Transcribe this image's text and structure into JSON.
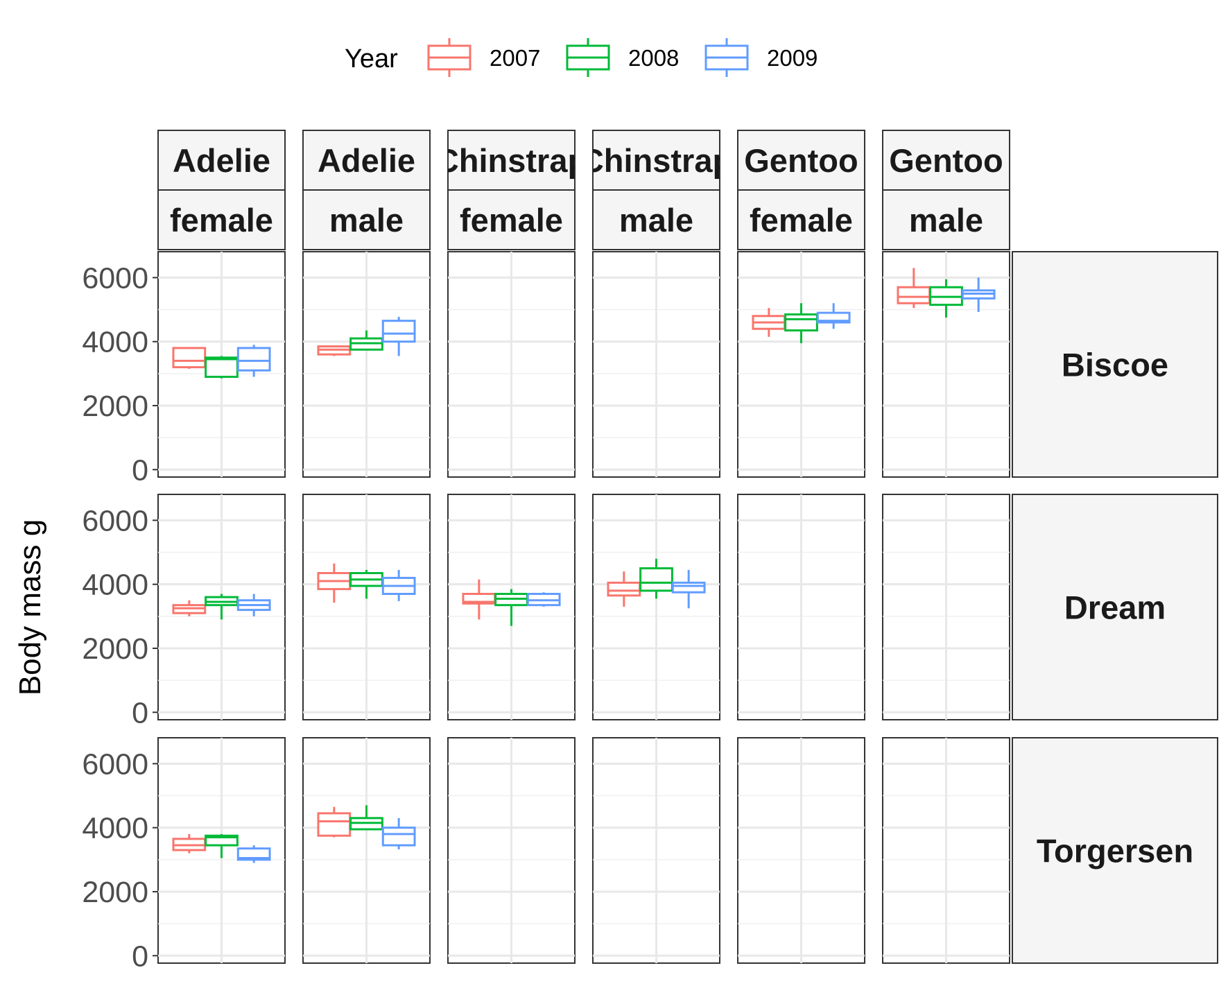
{
  "chart_data": {
    "type": "boxplot",
    "title": "",
    "xlabel": "",
    "ylabel": "Body mass g",
    "ylim": [
      0,
      6000
    ],
    "yticks": [
      0,
      2000,
      4000,
      6000
    ],
    "grid": true,
    "legend": {
      "title": "Year",
      "position": "top",
      "entries": [
        {
          "label": "2007",
          "color": "#F8766D"
        },
        {
          "label": "2008",
          "color": "#00BA38"
        },
        {
          "label": "2009",
          "color": "#619CFF"
        }
      ]
    },
    "facet_columns": [
      {
        "species": "Adelie",
        "sex": "female"
      },
      {
        "species": "Adelie",
        "sex": "male"
      },
      {
        "species": "Chinstrap",
        "sex": "female"
      },
      {
        "species": "Chinstrap",
        "sex": "male"
      },
      {
        "species": "Gentoo",
        "sex": "female"
      },
      {
        "species": "Gentoo",
        "sex": "male"
      }
    ],
    "facet_rows": [
      "Biscoe",
      "Dream",
      "Torgersen"
    ],
    "boxes": [
      {
        "island": "Biscoe",
        "col": 0,
        "year": "2007",
        "min": 3150,
        "q1": 3200,
        "median": 3400,
        "q3": 3800,
        "max": 3800
      },
      {
        "island": "Biscoe",
        "col": 0,
        "year": "2008",
        "min": 2850,
        "q1": 2900,
        "median": 3450,
        "q3": 3500,
        "max": 3550
      },
      {
        "island": "Biscoe",
        "col": 0,
        "year": "2009",
        "min": 2900,
        "q1": 3100,
        "median": 3400,
        "q3": 3800,
        "max": 3900
      },
      {
        "island": "Biscoe",
        "col": 1,
        "year": "2007",
        "min": 3550,
        "q1": 3600,
        "median": 3750,
        "q3": 3850,
        "max": 3850
      },
      {
        "island": "Biscoe",
        "col": 1,
        "year": "2008",
        "min": 3750,
        "q1": 3750,
        "median": 3950,
        "q3": 4100,
        "max": 4350
      },
      {
        "island": "Biscoe",
        "col": 1,
        "year": "2009",
        "min": 3550,
        "q1": 4000,
        "median": 4250,
        "q3": 4650,
        "max": 4775
      },
      {
        "island": "Biscoe",
        "col": 4,
        "year": "2007",
        "min": 4150,
        "q1": 4400,
        "median": 4600,
        "q3": 4800,
        "max": 5050
      },
      {
        "island": "Biscoe",
        "col": 4,
        "year": "2008",
        "min": 3950,
        "q1": 4350,
        "median": 4700,
        "q3": 4850,
        "max": 5200
      },
      {
        "island": "Biscoe",
        "col": 4,
        "year": "2009",
        "min": 4400,
        "q1": 4600,
        "median": 4650,
        "q3": 4900,
        "max": 5200
      },
      {
        "island": "Biscoe",
        "col": 5,
        "year": "2007",
        "min": 5050,
        "q1": 5200,
        "median": 5400,
        "q3": 5700,
        "max": 6300
      },
      {
        "island": "Biscoe",
        "col": 5,
        "year": "2008",
        "min": 4750,
        "q1": 5150,
        "median": 5400,
        "q3": 5700,
        "max": 5950
      },
      {
        "island": "Biscoe",
        "col": 5,
        "year": "2009",
        "min": 4925,
        "q1": 5350,
        "median": 5500,
        "q3": 5600,
        "max": 6000
      },
      {
        "island": "Dream",
        "col": 0,
        "year": "2007",
        "min": 3000,
        "q1": 3100,
        "median": 3250,
        "q3": 3350,
        "max": 3500
      },
      {
        "island": "Dream",
        "col": 0,
        "year": "2008",
        "min": 2900,
        "q1": 3350,
        "median": 3450,
        "q3": 3600,
        "max": 3700
      },
      {
        "island": "Dream",
        "col": 0,
        "year": "2009",
        "min": 3000,
        "q1": 3200,
        "median": 3350,
        "q3": 3500,
        "max": 3700
      },
      {
        "island": "Dream",
        "col": 1,
        "year": "2007",
        "min": 3425,
        "q1": 3850,
        "median": 4100,
        "q3": 4350,
        "max": 4650
      },
      {
        "island": "Dream",
        "col": 1,
        "year": "2008",
        "min": 3550,
        "q1": 3950,
        "median": 4150,
        "q3": 4350,
        "max": 4450
      },
      {
        "island": "Dream",
        "col": 1,
        "year": "2009",
        "min": 3475,
        "q1": 3700,
        "median": 3950,
        "q3": 4200,
        "max": 4450
      },
      {
        "island": "Dream",
        "col": 2,
        "year": "2007",
        "min": 2900,
        "q1": 3400,
        "median": 3450,
        "q3": 3700,
        "max": 4150
      },
      {
        "island": "Dream",
        "col": 2,
        "year": "2008",
        "min": 2700,
        "q1": 3350,
        "median": 3550,
        "q3": 3700,
        "max": 3850
      },
      {
        "island": "Dream",
        "col": 2,
        "year": "2009",
        "min": 3300,
        "q1": 3350,
        "median": 3500,
        "q3": 3700,
        "max": 3750
      },
      {
        "island": "Dream",
        "col": 3,
        "year": "2007",
        "min": 3300,
        "q1": 3650,
        "median": 3800,
        "q3": 4050,
        "max": 4400
      },
      {
        "island": "Dream",
        "col": 3,
        "year": "2008",
        "min": 3550,
        "q1": 3800,
        "median": 4050,
        "q3": 4500,
        "max": 4800
      },
      {
        "island": "Dream",
        "col": 3,
        "year": "2009",
        "min": 3250,
        "q1": 3750,
        "median": 3950,
        "q3": 4050,
        "max": 4450
      },
      {
        "island": "Torgersen",
        "col": 0,
        "year": "2007",
        "min": 3200,
        "q1": 3300,
        "median": 3450,
        "q3": 3650,
        "max": 3800
      },
      {
        "island": "Torgersen",
        "col": 0,
        "year": "2008",
        "min": 3050,
        "q1": 3450,
        "median": 3700,
        "q3": 3750,
        "max": 3800
      },
      {
        "island": "Torgersen",
        "col": 0,
        "year": "2009",
        "min": 2900,
        "q1": 3000,
        "median": 3050,
        "q3": 3350,
        "max": 3450
      },
      {
        "island": "Torgersen",
        "col": 1,
        "year": "2007",
        "min": 3700,
        "q1": 3750,
        "median": 4200,
        "q3": 4450,
        "max": 4650
      },
      {
        "island": "Torgersen",
        "col": 1,
        "year": "2008",
        "min": 3950,
        "q1": 3950,
        "median": 4150,
        "q3": 4300,
        "max": 4700
      },
      {
        "island": "Torgersen",
        "col": 1,
        "year": "2009",
        "min": 3325,
        "q1": 3450,
        "median": 3800,
        "q3": 4000,
        "max": 4300
      }
    ]
  },
  "strip_labels": {
    "columns": [
      {
        "top": "Adelie",
        "bottom": "female"
      },
      {
        "top": "Adelie",
        "bottom": "male"
      },
      {
        "top": "Chinstrap",
        "bottom": "female"
      },
      {
        "top": "Chinstrap",
        "bottom": "male"
      },
      {
        "top": "Gentoo",
        "bottom": "female"
      },
      {
        "top": "Gentoo",
        "bottom": "male"
      }
    ],
    "rows": [
      "Biscoe",
      "Dream",
      "Torgersen"
    ]
  }
}
